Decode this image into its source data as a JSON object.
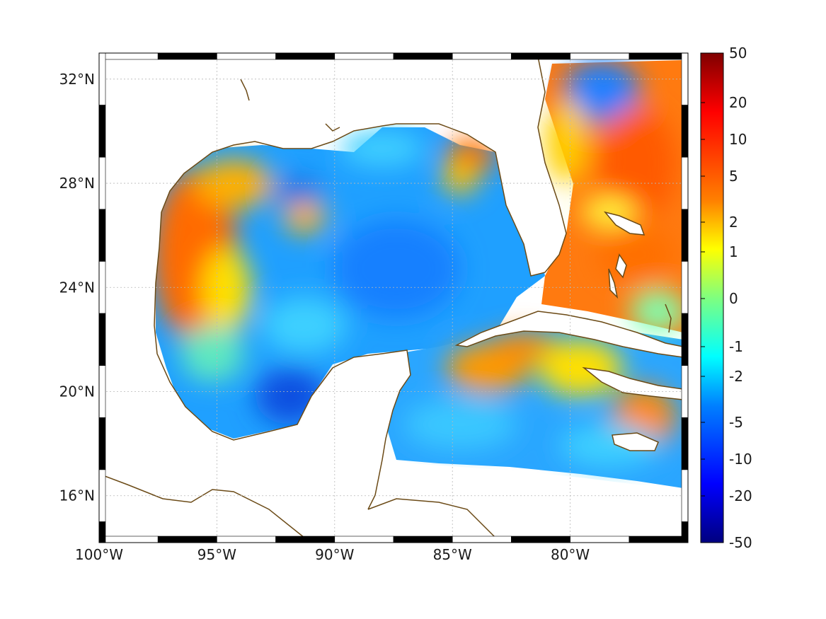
{
  "map": {
    "lon_range": [
      -100,
      -75
    ],
    "lat_range": [
      14.2,
      33
    ],
    "lon_ticks": [
      {
        "value": -100,
        "label": "100°W"
      },
      {
        "value": -95,
        "label": "95°W"
      },
      {
        "value": -90,
        "label": "90°W"
      },
      {
        "value": -85,
        "label": "85°W"
      },
      {
        "value": -80,
        "label": "80°W"
      }
    ],
    "lat_ticks": [
      {
        "value": 32,
        "label": "32°N"
      },
      {
        "value": 28,
        "label": "28°N"
      },
      {
        "value": 24,
        "label": "24°N"
      },
      {
        "value": 20,
        "label": "20°N"
      },
      {
        "value": 16,
        "label": "16°N"
      }
    ],
    "grid": true,
    "coastline_color": "#6b4a16",
    "land_color": "#ffffff"
  },
  "colorbar": {
    "placement": "right",
    "colormap": "jet",
    "ticks": [
      "50",
      "20",
      "10",
      "5",
      "2",
      "1",
      "0",
      "-1",
      "-2",
      "-5",
      "-10",
      "-20",
      "-50"
    ],
    "tick_values": [
      50,
      20,
      10,
      5,
      2,
      1,
      0,
      -1,
      -2,
      -5,
      -10,
      -20,
      -50
    ]
  }
}
